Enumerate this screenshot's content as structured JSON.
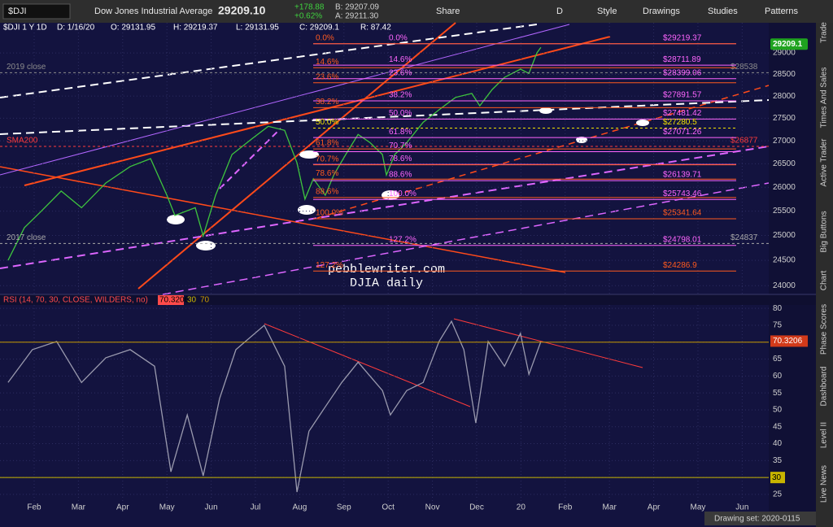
{
  "toolbar": {
    "symbol": "$DJI",
    "name": "Dow Jones Industrial Average",
    "last": "29209.10",
    "change": "+178.88",
    "change_pct": "+0.62%",
    "bid": "B: 29207.09",
    "ask": "A: 29211.30",
    "buttons": [
      "Share",
      "D",
      "Style",
      "Drawings",
      "Studies",
      "Patterns"
    ]
  },
  "chart_header": [
    "$DJI 1 Y 1D",
    "D: 1/16/20",
    "O: 29131.95",
    "H: 29219.37",
    "L: 29131.95",
    "C: 29209.1",
    "R: 87.42"
  ],
  "watermark": [
    "pebblewriter.com",
    "DJIA daily"
  ],
  "side_tabs": [
    "Trade",
    "Times And Sales",
    "Active Trader",
    "Big Buttons",
    "Chart",
    "Phase Scores",
    "Dashboard",
    "Level II",
    "Live News"
  ],
  "footer": "Drawing set: 2020-0115",
  "chart_data": [
    {
      "type": "line",
      "log": true,
      "color": "#3ec43e",
      "last": 29209.1,
      "last_color": "#1fa31f",
      "xlim": [
        0.228,
        17.6
      ],
      "ylim": [
        23830,
        29720
      ],
      "yticks": [
        24000,
        24500,
        25000,
        25500,
        26000,
        26500,
        27000,
        27500,
        28000,
        28500,
        29000
      ],
      "x": [
        0.41,
        0.78,
        1.15,
        1.61,
        2.07,
        2.62,
        3.17,
        3.63,
        4.0,
        4.18,
        4.64,
        4.82,
        5.1,
        5.47,
        5.93,
        6.29,
        6.66,
        6.94,
        7.12,
        7.31,
        7.58,
        7.77,
        8.04,
        8.32,
        8.59,
        8.87,
        8.96,
        9.15,
        9.42,
        9.79,
        10.15,
        10.52,
        10.89,
        11.07,
        11.35,
        11.63,
        11.99,
        12.18,
        12.36,
        12.45
      ],
      "values": [
        24500,
        25160,
        25490,
        25920,
        25570,
        26090,
        26440,
        26610,
        25830,
        25410,
        25570,
        24990,
        25830,
        26700,
        27050,
        27320,
        27230,
        26520,
        25750,
        26180,
        25830,
        26260,
        26700,
        27140,
        26960,
        26700,
        26260,
        26700,
        26960,
        27410,
        27690,
        27970,
        28060,
        27780,
        28150,
        28430,
        28620,
        28520,
        29000,
        29130
      ],
      "fib_sets": [
        {
          "color": "#ff66ff",
          "levels": [
            {
              "pct": "0.0%",
              "value": 29219.37,
              "price_label": "$29219.37"
            },
            {
              "pct": "14.6%",
              "value": 28711.89,
              "price_label": "$28711.89"
            },
            {
              "pct": "23.6%",
              "value": 28399.06,
              "price_label": "$28399.06"
            },
            {
              "pct": "38.2%",
              "value": 27891.57,
              "price_label": "$27891.57"
            },
            {
              "pct": "50.0%",
              "value": 27481.42,
              "price_label": "$27481.42"
            },
            {
              "pct": "61.8%",
              "value": 27071.26,
              "price_label": "$27071.26"
            },
            {
              "pct": "70.7%",
              "value": 26761.9
            },
            {
              "pct": "78.6%",
              "value": 26487.3
            },
            {
              "pct": "88.6%",
              "value": 26139.71,
              "price_label": "$26139.71"
            },
            {
              "pct": "100.0%",
              "value": 25743.46,
              "price_label": "$25743.46"
            },
            {
              "pct": "127.2%",
              "value": 24798.01,
              "price_label": "$24798.01"
            }
          ]
        },
        {
          "color": "#ff5a1f",
          "levels": [
            {
              "pct": "0.0%",
              "value": 29219.37
            },
            {
              "pct": "14.6%",
              "value": 28653.2
            },
            {
              "pct": "23.6%",
              "value": 28304.2
            },
            {
              "pct": "38.2%",
              "value": 27738.0
            },
            {
              "pct": "50.0%",
              "value": 27280.5,
              "price_label": "$27280.5",
              "color": "#f2e400"
            },
            {
              "pct": "61.8%",
              "value": 26822.9
            },
            {
              "pct": "70.7%",
              "value": 26477.8
            },
            {
              "pct": "78.6%",
              "value": 26171.4
            },
            {
              "pct": "88.6%",
              "value": 25783.6
            },
            {
              "pct": "100.0%",
              "value": 25341.64,
              "price_label": "$25341.64"
            },
            {
              "pct": "127.2%",
              "value": 24286.9,
              "price_label": "$24286.9"
            }
          ]
        }
      ],
      "reference_lines": [
        {
          "label": "2019 close",
          "value": 28538,
          "price_label": "$28538",
          "color": "#8c8c8c"
        },
        {
          "label": "SMA200",
          "value": 26877,
          "price_label": "$26877",
          "color": "#ff3b3b"
        },
        {
          "label": "2017 close",
          "value": 24837,
          "price_label": "$24837",
          "color": "#a8a8a8"
        }
      ]
    },
    {
      "type": "line",
      "title": "RSI (14, 70, 30, CLOSE, WILDERS, no)",
      "color": "#9a9aae",
      "last_value": 70.3206,
      "overbought": 70,
      "oversold": 30,
      "xlim": [
        0.228,
        17.6
      ],
      "ylim": [
        22.1,
        81
      ],
      "yticks": [
        25,
        30,
        35,
        40,
        45,
        50,
        55,
        60,
        65,
        70,
        75,
        80
      ],
      "xticks": [
        {
          "value": 1,
          "label": "Feb"
        },
        {
          "value": 2,
          "label": "Mar"
        },
        {
          "value": 3,
          "label": "Apr"
        },
        {
          "value": 4,
          "label": "May"
        },
        {
          "value": 5,
          "label": "Jun"
        },
        {
          "value": 6,
          "label": "Jul"
        },
        {
          "value": 7,
          "label": "Aug"
        },
        {
          "value": 8,
          "label": "Sep"
        },
        {
          "value": 9,
          "label": "Oct"
        },
        {
          "value": 10,
          "label": "Nov"
        },
        {
          "value": 11,
          "label": "Dec"
        },
        {
          "value": 12,
          "label": "20"
        },
        {
          "value": 13,
          "label": "Feb"
        },
        {
          "value": 14,
          "label": "Mar"
        },
        {
          "value": 15,
          "label": "Apr"
        },
        {
          "value": 16,
          "label": "May"
        },
        {
          "value": 17,
          "label": "Jun"
        }
      ],
      "x": [
        0.41,
        0.96,
        1.51,
        2.07,
        2.62,
        3.17,
        3.72,
        4.09,
        4.46,
        4.82,
        5.19,
        5.56,
        6.2,
        6.66,
        6.94,
        7.21,
        7.58,
        7.95,
        8.32,
        8.87,
        9.05,
        9.42,
        9.79,
        10.15,
        10.43,
        10.71,
        10.98,
        11.26,
        11.63,
        11.99,
        12.18,
        12.45
      ],
      "values": [
        58.1,
        67.8,
        70.2,
        58.1,
        65.4,
        67.8,
        62.9,
        31.7,
        48.5,
        30.5,
        53.3,
        67.8,
        75,
        62.9,
        25.7,
        43.7,
        50.9,
        58.1,
        64.1,
        55.7,
        48.5,
        55.7,
        58.1,
        70.2,
        76.2,
        67.8,
        46.1,
        70.2,
        62.9,
        72.6,
        60.5,
        70.2
      ]
    }
  ]
}
